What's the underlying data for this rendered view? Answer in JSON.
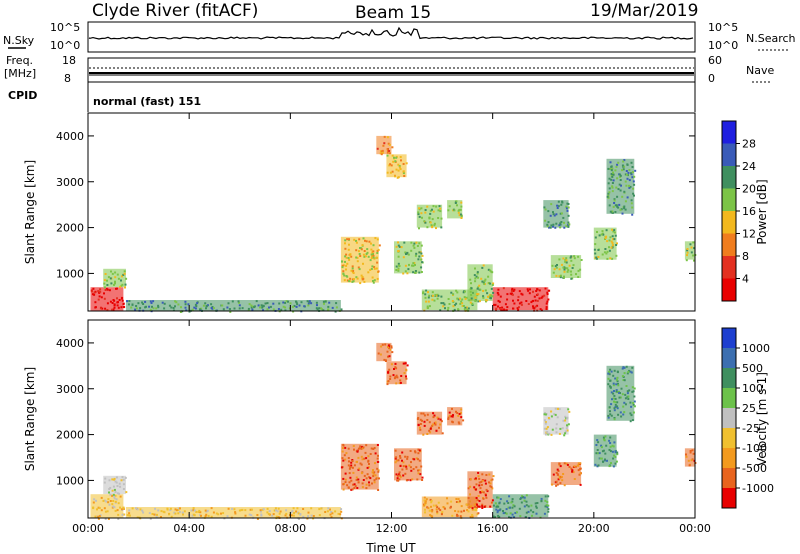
{
  "header": {
    "station": "Clyde River (fitACF)",
    "beam": "Beam 15",
    "date": "19/Mar/2019"
  },
  "status_panel": {
    "nsky_label": "N.Sky",
    "nsky_tick_top": "10^5",
    "nsky_tick_bottom": "10^0",
    "nsearch_label": "N.Search",
    "nsearch_tick_top": "10^5",
    "nsearch_tick_bottom": "10^0",
    "freq_label": "Freq.",
    "freq_unit": "[MHz]",
    "freq_tick_top": "18",
    "freq_tick_bottom": "8",
    "nave_label": "Nave",
    "nave_tick_top": "60",
    "nave_tick_bottom": "0",
    "cpid_label": "CPID",
    "cpid_value": "normal (fast) 151"
  },
  "chart_data": [
    {
      "type": "heatmap",
      "name": "power",
      "ylabel": "Slant Range [km]",
      "ylim": [
        180,
        4500
      ],
      "yticks": [
        "1000",
        "2000",
        "3000",
        "4000"
      ],
      "xlim_hours": [
        0,
        24
      ],
      "xticks": [
        "00:00",
        "04:00",
        "08:00",
        "12:00",
        "16:00",
        "20:00",
        "00:00"
      ],
      "colorbar_label": "Power [dB]",
      "colorbar_ticks": [
        "4",
        "8",
        "12",
        "16",
        "20",
        "24",
        "28"
      ],
      "colorbar_colors": [
        "#1f1fe0",
        "#3a5bb8",
        "#3f8f5f",
        "#7cc447",
        "#f2b81e",
        "#f07d1e",
        "#e33020",
        "#e80000"
      ],
      "regions": [
        {
          "t": [
            0.1,
            1.4
          ],
          "r": [
            180,
            700
          ],
          "level": 7
        },
        {
          "t": [
            0.6,
            1.5
          ],
          "r": [
            700,
            1100
          ],
          "level": 3
        },
        {
          "t": [
            1.5,
            10.0
          ],
          "r": [
            180,
            420
          ],
          "level": 2
        },
        {
          "t": [
            10.0,
            11.5
          ],
          "r": [
            800,
            1800
          ],
          "level": 4
        },
        {
          "t": [
            11.4,
            12.0
          ],
          "r": [
            3600,
            4000
          ],
          "level": 5
        },
        {
          "t": [
            11.8,
            12.6
          ],
          "r": [
            3100,
            3600
          ],
          "level": 4
        },
        {
          "t": [
            12.1,
            13.2
          ],
          "r": [
            1000,
            1700
          ],
          "level": 3
        },
        {
          "t": [
            13.0,
            14.0
          ],
          "r": [
            2000,
            2500
          ],
          "level": 3
        },
        {
          "t": [
            14.2,
            14.8
          ],
          "r": [
            2200,
            2600
          ],
          "level": 3
        },
        {
          "t": [
            13.2,
            15.4
          ],
          "r": [
            200,
            650
          ],
          "level": 3
        },
        {
          "t": [
            16.0,
            18.2
          ],
          "r": [
            200,
            700
          ],
          "level": 7
        },
        {
          "t": [
            15.0,
            16.0
          ],
          "r": [
            400,
            1200
          ],
          "level": 3
        },
        {
          "t": [
            18.0,
            19.0
          ],
          "r": [
            2000,
            2600
          ],
          "level": 2
        },
        {
          "t": [
            18.3,
            19.5
          ],
          "r": [
            900,
            1400
          ],
          "level": 3
        },
        {
          "t": [
            20.0,
            20.9
          ],
          "r": [
            1300,
            2000
          ],
          "level": 3
        },
        {
          "t": [
            20.5,
            21.6
          ],
          "r": [
            2300,
            3500
          ],
          "level": 2
        },
        {
          "t": [
            23.6,
            24.0
          ],
          "r": [
            1300,
            1700
          ],
          "level": 3
        }
      ]
    },
    {
      "type": "heatmap",
      "name": "velocity",
      "ylabel": "Slant Range [km]",
      "ylim": [
        180,
        4500
      ],
      "yticks": [
        "1000",
        "2000",
        "3000",
        "4000"
      ],
      "xlim_hours": [
        0,
        24
      ],
      "xticks": [
        "00:00",
        "04:00",
        "08:00",
        "12:00",
        "16:00",
        "20:00",
        "00:00"
      ],
      "xlabel": "Time UT",
      "colorbar_label": "Velocity [m s-1]",
      "colorbar_ticks": [
        "1000",
        "500",
        "100",
        "25",
        "-25",
        "-100",
        "-500",
        "-1000"
      ],
      "colorbar_colors": [
        "#1d3fd0",
        "#3c6fb0",
        "#3f8f5f",
        "#6cc24a",
        "#c0c0c0",
        "#f0c030",
        "#f39a1e",
        "#e8641e",
        "#e80000"
      ],
      "regions": [
        {
          "t": [
            0.1,
            1.4
          ],
          "r": [
            180,
            700
          ],
          "level": 5
        },
        {
          "t": [
            0.6,
            1.5
          ],
          "r": [
            700,
            1100
          ],
          "level": 4
        },
        {
          "t": [
            1.5,
            10.0
          ],
          "r": [
            180,
            420
          ],
          "level": 5
        },
        {
          "t": [
            10.0,
            11.5
          ],
          "r": [
            800,
            1800
          ],
          "level": 7
        },
        {
          "t": [
            11.4,
            12.0
          ],
          "r": [
            3600,
            4000
          ],
          "level": 7
        },
        {
          "t": [
            11.8,
            12.6
          ],
          "r": [
            3100,
            3600
          ],
          "level": 7
        },
        {
          "t": [
            12.1,
            13.2
          ],
          "r": [
            1000,
            1700
          ],
          "level": 7
        },
        {
          "t": [
            13.0,
            14.0
          ],
          "r": [
            2000,
            2500
          ],
          "level": 7
        },
        {
          "t": [
            14.2,
            14.8
          ],
          "r": [
            2200,
            2600
          ],
          "level": 7
        },
        {
          "t": [
            13.2,
            15.4
          ],
          "r": [
            200,
            650
          ],
          "level": 6
        },
        {
          "t": [
            16.0,
            18.2
          ],
          "r": [
            200,
            700
          ],
          "level": 2
        },
        {
          "t": [
            15.0,
            16.0
          ],
          "r": [
            400,
            1200
          ],
          "level": 7
        },
        {
          "t": [
            18.0,
            19.0
          ],
          "r": [
            2000,
            2600
          ],
          "level": 4
        },
        {
          "t": [
            18.3,
            19.5
          ],
          "r": [
            900,
            1400
          ],
          "level": 7
        },
        {
          "t": [
            20.0,
            20.9
          ],
          "r": [
            1300,
            2000
          ],
          "level": 2
        },
        {
          "t": [
            20.5,
            21.6
          ],
          "r": [
            2300,
            3500
          ],
          "level": 2
        },
        {
          "t": [
            23.6,
            24.0
          ],
          "r": [
            1300,
            1700
          ],
          "level": 7
        }
      ]
    }
  ]
}
